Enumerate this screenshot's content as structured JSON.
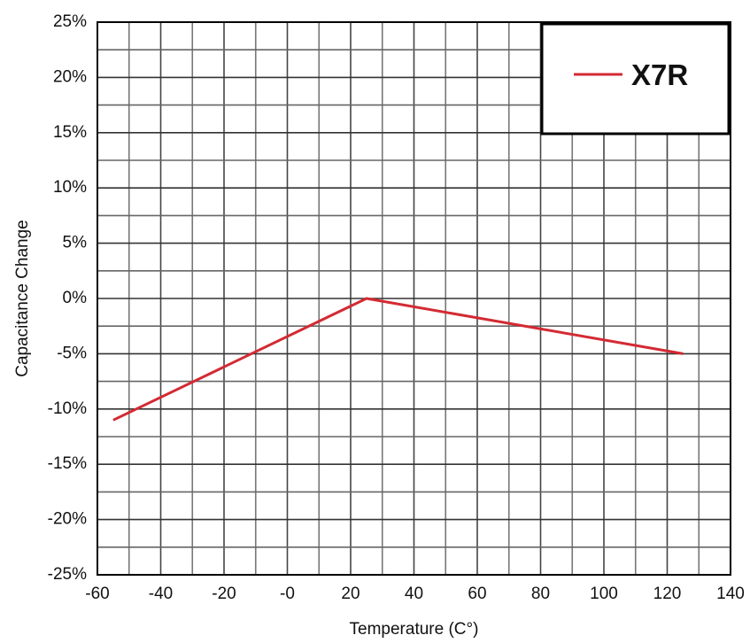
{
  "chart_data": {
    "type": "line",
    "title": "",
    "xlabel": "Temperature (C°)",
    "ylabel": "Capacitance Change",
    "xlim": [
      -60,
      140
    ],
    "ylim": [
      -25,
      25
    ],
    "x_ticks": [
      -60,
      -40,
      -20,
      0,
      20,
      40,
      60,
      80,
      100,
      120,
      140
    ],
    "x_tick_labels": [
      "-60",
      "-40",
      "-20",
      "-0",
      "20",
      "40",
      "60",
      "80",
      "100",
      "120",
      "140"
    ],
    "y_ticks": [
      25,
      20,
      15,
      10,
      5,
      0,
      -5,
      -10,
      -15,
      -20,
      -25
    ],
    "y_tick_labels": [
      "25%",
      "20%",
      "15%",
      "10%",
      "5%",
      "0%",
      "-5%",
      "-10%",
      "-15%",
      "-20%",
      "-25%"
    ],
    "grid": true,
    "legend_position": "top-right",
    "series": [
      {
        "name": "X7R",
        "color": "#d42a33",
        "x": [
          -55,
          25,
          125
        ],
        "y": [
          -11,
          0,
          -5
        ]
      }
    ]
  }
}
